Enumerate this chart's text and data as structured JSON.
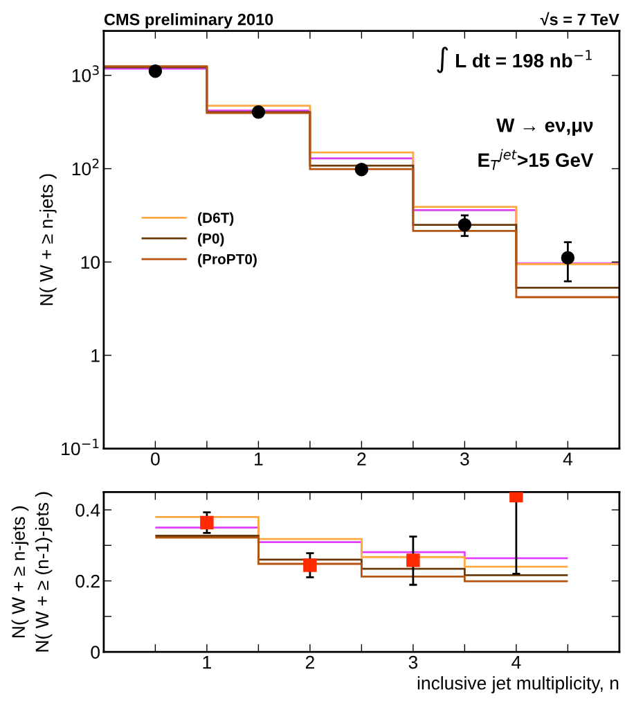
{
  "chart_data": [
    {
      "type": "histogram",
      "title": "CMS preliminary 2010",
      "subtitle": "√s = 7 TeV",
      "ylabel": "N( W + ≥ n-jets )",
      "annotations": [
        "∫ L dt = 198 nb$^{−1}$",
        "W → eν,μν",
        "E$_{T}$$^{jet}$>15 GeV"
      ],
      "bins": [
        -0.5,
        0.5,
        1.5,
        2.5,
        3.5,
        4.5
      ],
      "series": [
        {
          "color": "#e040fb",
          "values": [
            1180,
            420,
            129,
            36,
            9.7
          ]
        },
        {
          "name": "(D6T)",
          "color": "#ffa940",
          "values": [
            1233,
            472,
            149,
            39,
            9.5
          ]
        },
        {
          "name": "(P0)",
          "color": "#6b3a0a",
          "values": [
            1220,
            404,
            108,
            25,
            5.3
          ]
        },
        {
          "name": "(ProPT0)",
          "color": "#b5530f",
          "values": [
            1250,
            395,
            99,
            21.5,
            4.2
          ]
        },
        {
          "type": "scatter",
          "color": "#000000",
          "marker": "circle",
          "x": [
            0,
            1,
            2,
            3,
            4
          ],
          "values": [
            1110,
            404,
            98,
            25,
            11.1
          ],
          "errors": [
            null,
            null,
            null,
            [
              19,
              31.6
            ],
            [
              6.2,
              16.3
            ]
          ]
        }
      ],
      "log": "y",
      "xlim": [
        -0.5,
        4.5
      ],
      "ylim": [
        0.1,
        3000
      ],
      "xticks": [
        0,
        1,
        2,
        3,
        4,
        {
          "value": 0.5,
          "label": null
        },
        {
          "value": 1.5,
          "label": null
        },
        {
          "value": 2.5,
          "label": null
        },
        {
          "value": 3.5,
          "label": null
        }
      ],
      "yticks": [
        {
          "value": 0.1,
          "label": "10$^{−1}$"
        },
        1,
        10,
        {
          "value": 100,
          "label": "10$^{2}$"
        },
        {
          "value": 1000,
          "label": "10$^{3}$"
        }
      ],
      "legend": "center left",
      "grid": false
    },
    {
      "type": "histogram",
      "xlabel": "inclusive jet multiplicity, n",
      "ylabel": "N( W + ≥ n-jets )\nN( W + ≥ (n-1)-jets )",
      "bins": [
        0.5,
        1.5,
        2.5,
        3.5,
        4.5
      ],
      "series": [
        {
          "color": "#e040fb",
          "values": [
            0.35,
            0.309,
            0.281,
            0.264
          ]
        },
        {
          "color": "#ffa940",
          "values": [
            0.38,
            0.318,
            0.267,
            0.24
          ]
        },
        {
          "color": "#6b3a0a",
          "values": [
            0.327,
            0.26,
            0.234,
            0.216
          ]
        },
        {
          "color": "#b5530f",
          "values": [
            0.322,
            0.248,
            0.212,
            0.199
          ]
        },
        {
          "type": "scatter",
          "color": "#ff2a00",
          "marker": "square",
          "x": [
            1,
            2,
            3,
            4
          ],
          "values": [
            0.364,
            0.244,
            0.258,
            0.44
          ],
          "errors": [
            [
              0.335,
              0.393
            ],
            [
              0.21,
              0.278
            ],
            [
              0.189,
              0.325
            ],
            [
              0.22,
              0.44
            ]
          ]
        }
      ],
      "xlim": [
        0,
        5
      ],
      "ylim": [
        0,
        0.45
      ],
      "xticks": [
        1,
        2,
        3,
        4,
        {
          "value": 0.5,
          "label": null
        },
        {
          "value": 1.5,
          "label": null
        },
        {
          "value": 2.5,
          "label": null
        },
        {
          "value": 3.5,
          "label": null
        },
        {
          "value": 4.5,
          "label": null
        }
      ],
      "yticks": [
        0,
        {
          "value": 0.1,
          "label": null
        },
        0.2,
        {
          "value": 0.3,
          "label": null
        },
        0.4
      ],
      "grid": false
    }
  ]
}
